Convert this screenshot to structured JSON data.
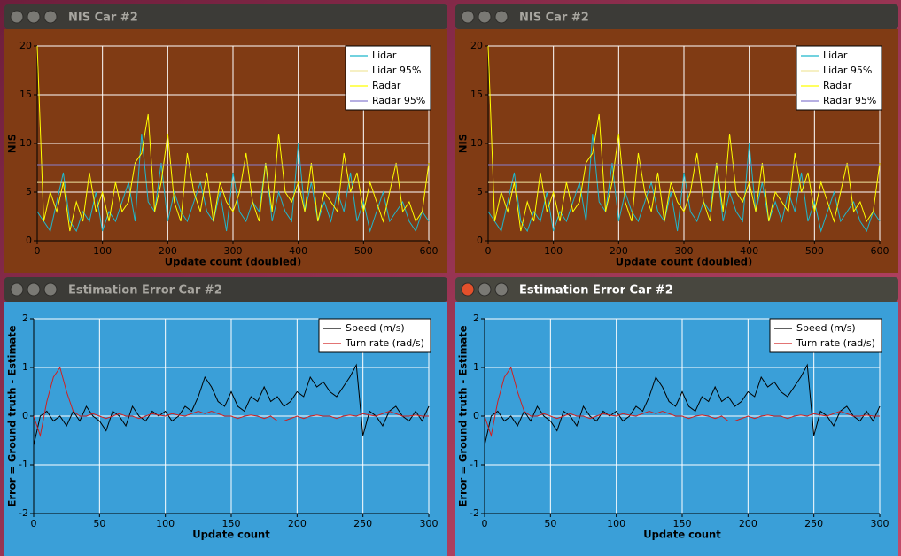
{
  "windows": [
    {
      "title": "NIS Car #2"
    },
    {
      "title": "NIS Car #2"
    },
    {
      "title": "Estimation Error Car #2"
    },
    {
      "title": "Estimation Error Car #2"
    }
  ],
  "chart_data": [
    {
      "type": "line",
      "background": "#803b14",
      "xlabel": "Update count (doubled)",
      "ylabel": "NIS",
      "xlim": [
        0,
        600
      ],
      "ylim": [
        0,
        20
      ],
      "xticks": [
        0,
        100,
        200,
        300,
        400,
        500,
        600
      ],
      "yticks": [
        0,
        5,
        10,
        15,
        20
      ],
      "grid": true,
      "legend": "upper right",
      "x": [
        0,
        10,
        20,
        30,
        40,
        50,
        60,
        70,
        80,
        90,
        100,
        110,
        120,
        130,
        140,
        150,
        160,
        170,
        180,
        190,
        200,
        210,
        220,
        230,
        240,
        250,
        260,
        270,
        280,
        290,
        300,
        310,
        320,
        330,
        340,
        350,
        360,
        370,
        380,
        390,
        400,
        410,
        420,
        430,
        440,
        450,
        460,
        470,
        480,
        490,
        500,
        510,
        520,
        530,
        540,
        550,
        560,
        570,
        580,
        590,
        600
      ],
      "series": [
        {
          "name": "Lidar",
          "color": "#1fb8cc",
          "values": [
            3,
            2,
            1,
            4,
            7,
            2,
            1,
            3,
            2,
            5,
            1,
            3,
            2,
            4,
            6,
            2,
            11,
            4,
            3,
            8,
            2,
            5,
            3,
            2,
            4,
            6,
            3,
            2,
            5,
            1,
            7,
            3,
            2,
            4,
            3,
            8,
            2,
            5,
            3,
            2,
            10,
            3,
            6,
            2,
            4,
            2,
            5,
            3,
            7,
            2,
            4,
            1,
            3,
            5,
            2,
            3,
            4,
            2,
            1,
            3,
            2
          ]
        },
        {
          "name": "Lidar 95%",
          "color": "#f0e6a0",
          "x": [
            0,
            600
          ],
          "values": [
            5.991,
            5.991
          ]
        },
        {
          "name": "Radar",
          "color": "#ffff00",
          "values": [
            20,
            2,
            5,
            3,
            6,
            1,
            4,
            2,
            7,
            3,
            5,
            2,
            6,
            3,
            4,
            8,
            9,
            13,
            3,
            6,
            11,
            4,
            2,
            9,
            5,
            3,
            7,
            2,
            6,
            4,
            3,
            5,
            9,
            4,
            2,
            8,
            3,
            11,
            5,
            4,
            6,
            3,
            8,
            2,
            5,
            4,
            3,
            9,
            5,
            7,
            3,
            6,
            4,
            2,
            5,
            8,
            3,
            4,
            2,
            3,
            8
          ]
        },
        {
          "name": "Radar 95%",
          "color": "#8a7fd0",
          "x": [
            0,
            600
          ],
          "values": [
            7.815,
            7.815
          ]
        }
      ]
    },
    {
      "type": "line",
      "background": "#803b14",
      "xlabel": "Update count (doubled)",
      "ylabel": "NIS",
      "xlim": [
        0,
        600
      ],
      "ylim": [
        0,
        20
      ],
      "xticks": [
        0,
        100,
        200,
        300,
        400,
        500,
        600
      ],
      "yticks": [
        0,
        5,
        10,
        15,
        20
      ],
      "grid": true,
      "legend": "upper right",
      "x": [
        0,
        10,
        20,
        30,
        40,
        50,
        60,
        70,
        80,
        90,
        100,
        110,
        120,
        130,
        140,
        150,
        160,
        170,
        180,
        190,
        200,
        210,
        220,
        230,
        240,
        250,
        260,
        270,
        280,
        290,
        300,
        310,
        320,
        330,
        340,
        350,
        360,
        370,
        380,
        390,
        400,
        410,
        420,
        430,
        440,
        450,
        460,
        470,
        480,
        490,
        500,
        510,
        520,
        530,
        540,
        550,
        560,
        570,
        580,
        590,
        600
      ],
      "series": [
        {
          "name": "Lidar",
          "color": "#1fb8cc",
          "values": [
            3,
            2,
            1,
            4,
            7,
            2,
            1,
            3,
            2,
            5,
            1,
            3,
            2,
            4,
            6,
            2,
            11,
            4,
            3,
            8,
            2,
            5,
            3,
            2,
            4,
            6,
            3,
            2,
            5,
            1,
            7,
            3,
            2,
            4,
            3,
            8,
            2,
            5,
            3,
            2,
            10,
            3,
            6,
            2,
            4,
            2,
            5,
            3,
            7,
            2,
            4,
            1,
            3,
            5,
            2,
            3,
            4,
            2,
            1,
            3,
            2
          ]
        },
        {
          "name": "Lidar 95%",
          "color": "#f0e6a0",
          "x": [
            0,
            600
          ],
          "values": [
            5.991,
            5.991
          ]
        },
        {
          "name": "Radar",
          "color": "#ffff00",
          "values": [
            20,
            2,
            5,
            3,
            6,
            1,
            4,
            2,
            7,
            3,
            5,
            2,
            6,
            3,
            4,
            8,
            9,
            13,
            3,
            6,
            11,
            4,
            2,
            9,
            5,
            3,
            7,
            2,
            6,
            4,
            3,
            5,
            9,
            4,
            2,
            8,
            3,
            11,
            5,
            4,
            6,
            3,
            8,
            2,
            5,
            4,
            3,
            9,
            5,
            7,
            3,
            6,
            4,
            2,
            5,
            8,
            3,
            4,
            2,
            3,
            8
          ]
        },
        {
          "name": "Radar 95%",
          "color": "#8a7fd0",
          "x": [
            0,
            600
          ],
          "values": [
            7.815,
            7.815
          ]
        }
      ]
    },
    {
      "type": "line",
      "background": "#3a9fd8",
      "xlabel": "Update count",
      "ylabel": "Error = Ground truth - Estimate",
      "xlim": [
        0,
        300
      ],
      "ylim": [
        -2,
        2
      ],
      "xticks": [
        0,
        50,
        100,
        150,
        200,
        250,
        300
      ],
      "yticks": [
        -2,
        -1,
        0,
        1,
        2
      ],
      "grid": true,
      "legend": "upper right",
      "x": [
        0,
        5,
        10,
        15,
        20,
        25,
        30,
        35,
        40,
        45,
        50,
        55,
        60,
        65,
        70,
        75,
        80,
        85,
        90,
        95,
        100,
        105,
        110,
        115,
        120,
        125,
        130,
        135,
        140,
        145,
        150,
        155,
        160,
        165,
        170,
        175,
        180,
        185,
        190,
        195,
        200,
        205,
        210,
        215,
        220,
        225,
        230,
        235,
        240,
        245,
        250,
        255,
        260,
        265,
        270,
        275,
        280,
        285,
        290,
        295,
        300
      ],
      "series": [
        {
          "name": "Speed (m/s)",
          "color": "#000000",
          "values": [
            -0.6,
            0,
            0.1,
            -0.1,
            0,
            -0.2,
            0.1,
            -0.1,
            0.2,
            0,
            -0.1,
            -0.3,
            0.1,
            0,
            -0.2,
            0.2,
            0,
            -0.1,
            0.1,
            0,
            0.1,
            -0.1,
            0,
            0.2,
            0.1,
            0.4,
            0.8,
            0.6,
            0.3,
            0.2,
            0.5,
            0.2,
            0.1,
            0.4,
            0.3,
            0.6,
            0.3,
            0.4,
            0.2,
            0.3,
            0.5,
            0.4,
            0.8,
            0.6,
            0.7,
            0.5,
            0.4,
            0.6,
            0.8,
            1.05,
            -0.4,
            0.1,
            0,
            -0.2,
            0.1,
            0.2,
            0,
            -0.1,
            0.1,
            -0.1,
            0.2
          ]
        },
        {
          "name": "Turn rate (rad/s)",
          "color": "#d02020",
          "values": [
            0,
            -0.4,
            0.3,
            0.8,
            1.0,
            0.5,
            0.1,
            0,
            0,
            0.05,
            0,
            -0.05,
            0,
            0.05,
            0,
            0,
            -0.05,
            0,
            0.05,
            0.02,
            0,
            0.05,
            0.02,
            0,
            0.05,
            0.1,
            0.05,
            0.1,
            0.05,
            0,
            0,
            -0.05,
            0,
            0.02,
            0,
            -0.05,
            0,
            -0.1,
            -0.1,
            -0.05,
            0,
            -0.05,
            0,
            0.02,
            0,
            0,
            -0.05,
            0,
            0.02,
            0,
            0.05,
            0.02,
            0,
            0.05,
            0.1,
            0.05,
            0,
            0,
            0.02,
            0,
            0
          ]
        }
      ]
    },
    {
      "type": "line",
      "background": "#3a9fd8",
      "xlabel": "Update count",
      "ylabel": "Error = Ground truth - Estimate",
      "xlim": [
        0,
        300
      ],
      "ylim": [
        -2,
        2
      ],
      "xticks": [
        0,
        50,
        100,
        150,
        200,
        250,
        300
      ],
      "yticks": [
        -2,
        -1,
        0,
        1,
        2
      ],
      "grid": true,
      "legend": "upper right",
      "x": [
        0,
        5,
        10,
        15,
        20,
        25,
        30,
        35,
        40,
        45,
        50,
        55,
        60,
        65,
        70,
        75,
        80,
        85,
        90,
        95,
        100,
        105,
        110,
        115,
        120,
        125,
        130,
        135,
        140,
        145,
        150,
        155,
        160,
        165,
        170,
        175,
        180,
        185,
        190,
        195,
        200,
        205,
        210,
        215,
        220,
        225,
        230,
        235,
        240,
        245,
        250,
        255,
        260,
        265,
        270,
        275,
        280,
        285,
        290,
        295,
        300
      ],
      "series": [
        {
          "name": "Speed (m/s)",
          "color": "#000000",
          "values": [
            -0.6,
            0,
            0.1,
            -0.1,
            0,
            -0.2,
            0.1,
            -0.1,
            0.2,
            0,
            -0.1,
            -0.3,
            0.1,
            0,
            -0.2,
            0.2,
            0,
            -0.1,
            0.1,
            0,
            0.1,
            -0.1,
            0,
            0.2,
            0.1,
            0.4,
            0.8,
            0.6,
            0.3,
            0.2,
            0.5,
            0.2,
            0.1,
            0.4,
            0.3,
            0.6,
            0.3,
            0.4,
            0.2,
            0.3,
            0.5,
            0.4,
            0.8,
            0.6,
            0.7,
            0.5,
            0.4,
            0.6,
            0.8,
            1.05,
            -0.4,
            0.1,
            0,
            -0.2,
            0.1,
            0.2,
            0,
            -0.1,
            0.1,
            -0.1,
            0.2
          ]
        },
        {
          "name": "Turn rate (rad/s)",
          "color": "#d02020",
          "values": [
            0,
            -0.4,
            0.3,
            0.8,
            1.0,
            0.5,
            0.1,
            0,
            0,
            0.05,
            0,
            -0.05,
            0,
            0.05,
            0,
            0,
            -0.05,
            0,
            0.05,
            0.02,
            0,
            0.05,
            0.02,
            0,
            0.05,
            0.1,
            0.05,
            0.1,
            0.05,
            0,
            0,
            -0.05,
            0,
            0.02,
            0,
            -0.05,
            0,
            -0.1,
            -0.1,
            -0.05,
            0,
            -0.05,
            0,
            0.02,
            0,
            0,
            -0.05,
            0,
            0.02,
            0,
            0.05,
            0.02,
            0,
            0.05,
            0.1,
            0.05,
            0,
            0,
            0.02,
            0,
            0
          ]
        }
      ]
    }
  ]
}
